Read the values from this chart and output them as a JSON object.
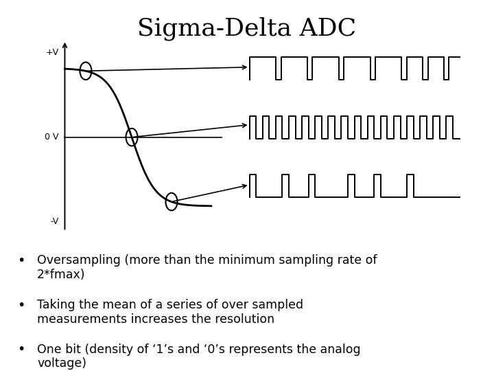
{
  "title": "Sigma-Delta ADC",
  "title_fontsize": 26,
  "title_font": "serif",
  "bullet_points": [
    "Oversampling (more than the minimum sampling rate of\n2*fmax)",
    "Taking the mean of a series of over sampled\nmeasurements increases the resolution",
    "One bit (density of ‘1’s and ‘0’s represents the analog\nvoltage)"
  ],
  "bullet_fontsize": 12.5,
  "axis_label_pv": "+V",
  "axis_label_ov": "0 V",
  "axis_label_nv": "-V",
  "bg_color": "#e8cfc0",
  "slide_bg": "#ffffff",
  "top_wave_pattern": [
    1,
    1,
    1,
    1,
    1,
    0,
    1,
    1,
    1,
    1,
    1,
    0,
    1,
    1,
    1,
    1,
    1,
    0,
    1,
    1,
    1,
    1,
    1,
    0,
    1,
    1,
    1,
    1,
    1,
    0,
    1,
    1,
    1,
    0,
    1,
    1,
    1,
    0,
    1,
    1
  ],
  "mid_wave_pattern": [
    1,
    0,
    1,
    0,
    1,
    0,
    1,
    0,
    1,
    0,
    1,
    0,
    1,
    0,
    1,
    0,
    1,
    0,
    1,
    0,
    1,
    0,
    1,
    0,
    1,
    0,
    1,
    0,
    1,
    0,
    1,
    0
  ],
  "bot_wave_pattern": [
    1,
    0,
    0,
    0,
    0,
    1,
    0,
    0,
    0,
    1,
    0,
    0,
    0,
    0,
    0,
    1,
    0,
    0,
    0,
    1,
    0,
    0,
    0,
    0,
    1,
    0,
    0,
    0,
    0,
    0,
    0,
    0
  ]
}
